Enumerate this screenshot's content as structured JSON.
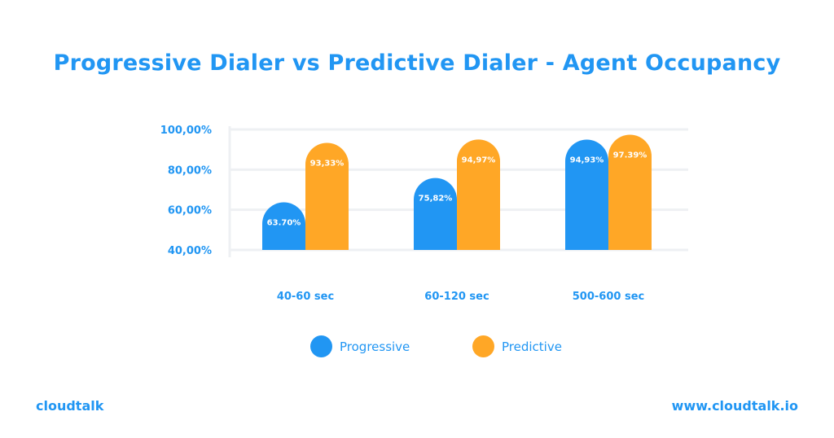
{
  "chart_data": {
    "type": "bar",
    "title": "Progressive Dialer vs Predictive Dialer - Agent Occupancy",
    "categories": [
      "40-60 sec",
      "60-120 sec",
      "500-600 sec"
    ],
    "series": [
      {
        "name": "Progressive",
        "values": [
          63.7,
          75.82,
          94.93
        ],
        "labels": [
          "63.70%",
          "75,82%",
          "94,93%"
        ],
        "color": "#2196f3"
      },
      {
        "name": "Predictive",
        "values": [
          93.33,
          94.97,
          97.39
        ],
        "labels": [
          "93,33%",
          "94,97%",
          "97.39%"
        ],
        "color": "#ffa726"
      }
    ],
    "ylim": [
      40,
      100
    ],
    "yticks": [
      40,
      60,
      80,
      100
    ],
    "ytick_labels": [
      "40,00%",
      "60,00%",
      "80,00%",
      "100,00%"
    ],
    "grid": true,
    "legend_placement": "bottom"
  },
  "footer": {
    "brand": "cloudtalk",
    "url": "www.cloudtalk.io"
  }
}
